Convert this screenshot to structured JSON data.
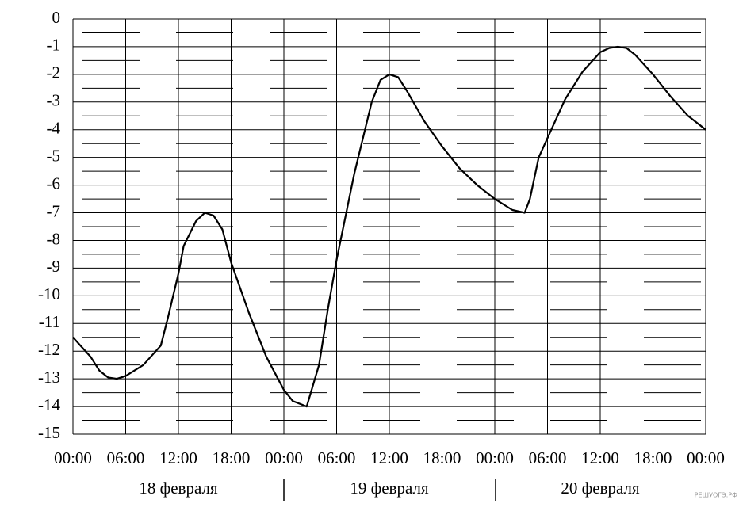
{
  "chart_data": {
    "type": "line",
    "x": [
      0,
      2,
      3,
      4,
      5,
      6,
      8,
      10,
      10.8,
      12,
      12.6,
      14,
      15,
      16,
      17,
      18,
      20,
      22,
      24,
      25,
      26.6,
      28,
      29,
      30,
      32,
      34,
      35,
      36,
      37,
      38,
      40,
      42,
      44,
      46,
      48,
      50,
      51.4,
      52,
      53,
      54,
      56,
      58,
      60,
      61,
      62,
      63,
      64,
      66,
      68,
      70,
      72
    ],
    "series": [
      {
        "name": null,
        "color": "#000000",
        "values": [
          -11.5,
          -12.2,
          -12.7,
          -12.95,
          -13,
          -12.9,
          -12.5,
          -11.8,
          -10.8,
          -9.2,
          -8.2,
          -7.3,
          -7,
          -7.1,
          -7.6,
          -8.8,
          -10.6,
          -12.2,
          -13.4,
          -13.8,
          -14,
          -12.5,
          -10.5,
          -8.7,
          -5.6,
          -3,
          -2.2,
          -2,
          -2.1,
          -2.6,
          -3.7,
          -4.6,
          -5.4,
          -6,
          -6.5,
          -6.9,
          -7,
          -6.5,
          -5,
          -4.3,
          -2.9,
          -1.9,
          -1.2,
          -1.05,
          -1,
          -1.05,
          -1.3,
          -2,
          -2.8,
          -3.5,
          -4
        ]
      }
    ],
    "xlim": [
      0,
      72
    ],
    "xticks": [
      {
        "value": 0,
        "label": "00:00"
      },
      {
        "value": 6,
        "label": "06:00"
      },
      {
        "value": 12,
        "label": "12:00"
      },
      {
        "value": 18,
        "label": "18:00"
      },
      {
        "value": 24,
        "label": "00:00"
      },
      {
        "value": 30,
        "label": "06:00"
      },
      {
        "value": 36,
        "label": "12:00"
      },
      {
        "value": 42,
        "label": "18:00"
      },
      {
        "value": 48,
        "label": "00:00"
      },
      {
        "value": 54,
        "label": "06:00"
      },
      {
        "value": 60,
        "label": "12:00"
      },
      {
        "value": 66,
        "label": "18:00"
      },
      {
        "value": 72,
        "label": "00:00"
      }
    ],
    "ylim": [
      -15,
      0
    ],
    "yticks": [
      0,
      -1,
      -2,
      -3,
      -4,
      -5,
      -6,
      -7,
      -8,
      -9,
      -10,
      -11,
      -12,
      -13,
      -14,
      -15
    ],
    "yminorticks": [
      -0.5,
      -1.5,
      -2.5,
      -3.5,
      -4.5,
      -5.5,
      -6.5,
      -7.5,
      -8.5,
      -9.5,
      -10.5,
      -11.5,
      -12.5,
      -13.5,
      -14.5
    ],
    "grid": true,
    "day_labels": [
      "18 февраля",
      "19 февраля",
      "20 февраля"
    ],
    "watermark": "РЕШУОГЭ.РФ"
  }
}
